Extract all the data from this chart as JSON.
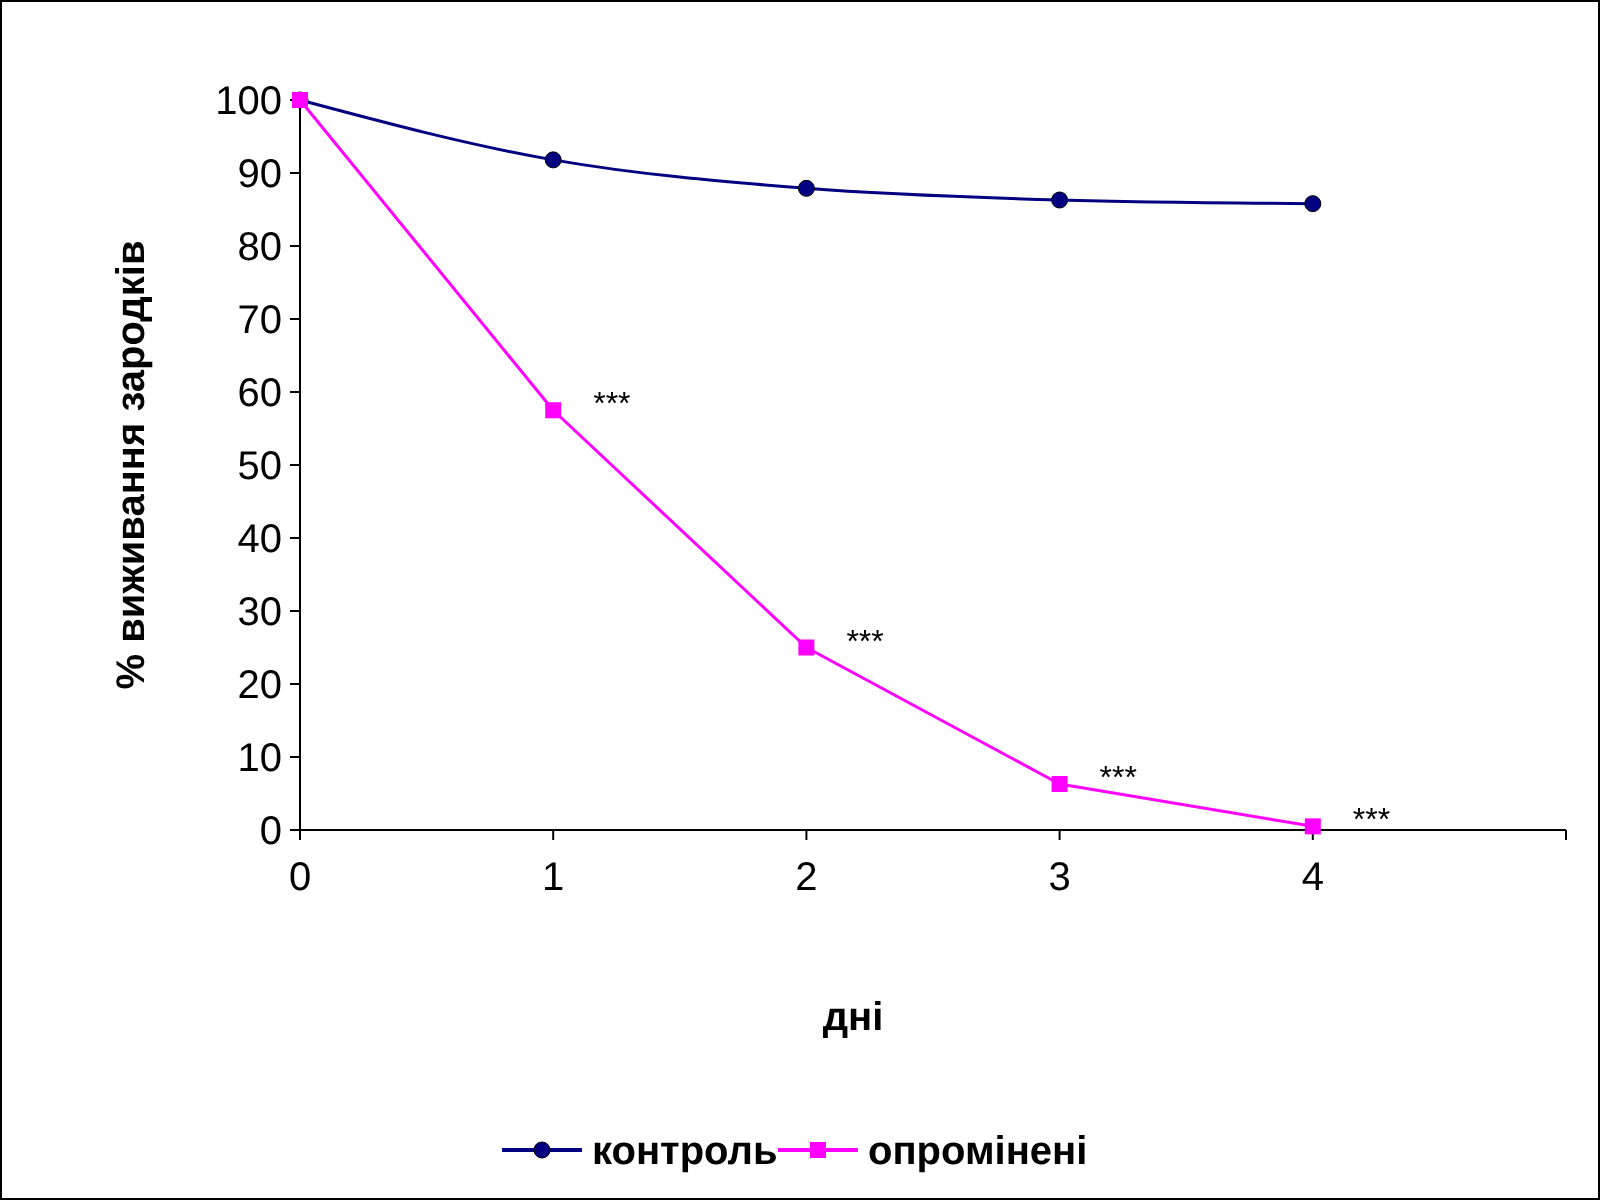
{
  "chart_data": {
    "type": "line",
    "xlabel": "дні",
    "ylabel": "% виживання зародків",
    "x": [
      0,
      1,
      2,
      3,
      4
    ],
    "series": [
      {
        "name": "контроль",
        "color": "#000080",
        "values": [
          100,
          91.8,
          87.9,
          86.3,
          85.8
        ],
        "marker": "circle"
      },
      {
        "name": "опромінені",
        "color": "#ff00ff",
        "values": [
          100,
          57.5,
          25,
          6.3,
          0.5
        ],
        "marker": "square"
      }
    ],
    "xlim": [
      0,
      5
    ],
    "xticks": [
      0,
      1,
      2,
      3,
      4,
      {
        "value": 5,
        "label": null
      }
    ],
    "ylim": [
      0,
      100
    ],
    "yticks": [
      0,
      10,
      20,
      30,
      40,
      50,
      60,
      70,
      80,
      90,
      100
    ],
    "grid": false,
    "legend": "bottom",
    "line_style": "solid",
    "annotations": [
      {
        "text": "***",
        "x": 1,
        "y": 57.5
      },
      {
        "text": "***",
        "x": 2,
        "y": 25
      },
      {
        "text": "***",
        "x": 3,
        "y": 6.3
      },
      {
        "text": "***",
        "x": 4,
        "y": 0.5
      }
    ]
  }
}
